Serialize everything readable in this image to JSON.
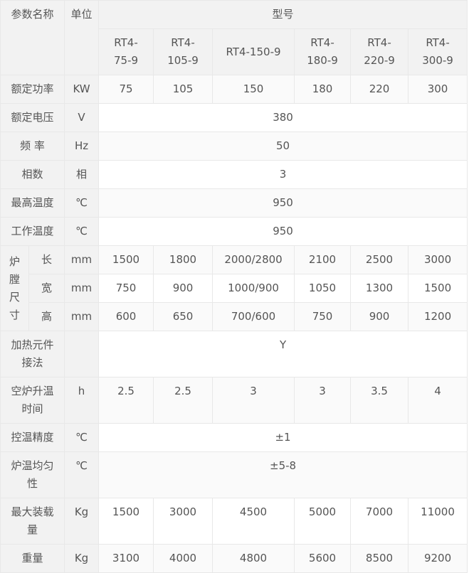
{
  "header": {
    "param": "参数名称",
    "unit": "单位",
    "model": "型号",
    "models": [
      [
        "RT4-",
        "75-9"
      ],
      [
        "RT4-",
        "105-9"
      ],
      [
        "RT4-150-9"
      ],
      [
        "RT4-",
        "180-9"
      ],
      [
        "RT4-",
        "220-9"
      ],
      [
        "RT4-",
        "300-9"
      ]
    ]
  },
  "rows": [
    {
      "name": "额定功率",
      "unit": "KW",
      "values": [
        "75",
        "105",
        "150",
        "180",
        "220",
        "300"
      ]
    },
    {
      "name": "额定电压",
      "unit": "V",
      "values": [
        "380"
      ]
    },
    {
      "name": "频 率",
      "unit": "Hz",
      "values": [
        "50"
      ]
    },
    {
      "name": "相数",
      "unit": "相",
      "values": [
        "3"
      ]
    },
    {
      "name": "最高温度",
      "unit": "℃",
      "values": [
        "950"
      ]
    },
    {
      "name": "工作温度",
      "unit": "℃",
      "values": [
        "950"
      ]
    }
  ],
  "chamber": {
    "label": [
      "炉",
      "膛",
      "尺",
      "寸"
    ],
    "rows": [
      {
        "name": "长",
        "unit": "mm",
        "values": [
          "1500",
          "1800",
          "2000/2800",
          "2100",
          "2500",
          "3000"
        ]
      },
      {
        "name": "宽",
        "unit": "mm",
        "values": [
          "750",
          "900",
          "1000/900",
          "1050",
          "1300",
          "1500"
        ]
      },
      {
        "name": "高",
        "unit": "mm",
        "values": [
          "600",
          "650",
          "700/600",
          "750",
          "900",
          "1200"
        ]
      }
    ]
  },
  "rows2": [
    {
      "name": [
        "加热元件",
        "接法"
      ],
      "unit": "",
      "values": [
        "Y"
      ]
    },
    {
      "name": [
        "空炉升温",
        "时间"
      ],
      "unit": "h",
      "values": [
        "2.5",
        "2.5",
        "3",
        "3",
        "3.5",
        "4"
      ]
    },
    {
      "name": [
        "控温精度"
      ],
      "unit": "℃",
      "values": [
        "±1"
      ]
    },
    {
      "name": [
        "炉温均匀",
        "性"
      ],
      "unit": "℃",
      "values": [
        "±5-8"
      ]
    },
    {
      "name": [
        "最大装载",
        "量"
      ],
      "unit": "Kg",
      "values": [
        "1500",
        "3000",
        "4500",
        "5000",
        "7000",
        "11000"
      ]
    },
    {
      "name": [
        "重量"
      ],
      "unit": "Kg",
      "values": [
        "3100",
        "4000",
        "4800",
        "5600",
        "8500",
        "9200"
      ]
    }
  ]
}
